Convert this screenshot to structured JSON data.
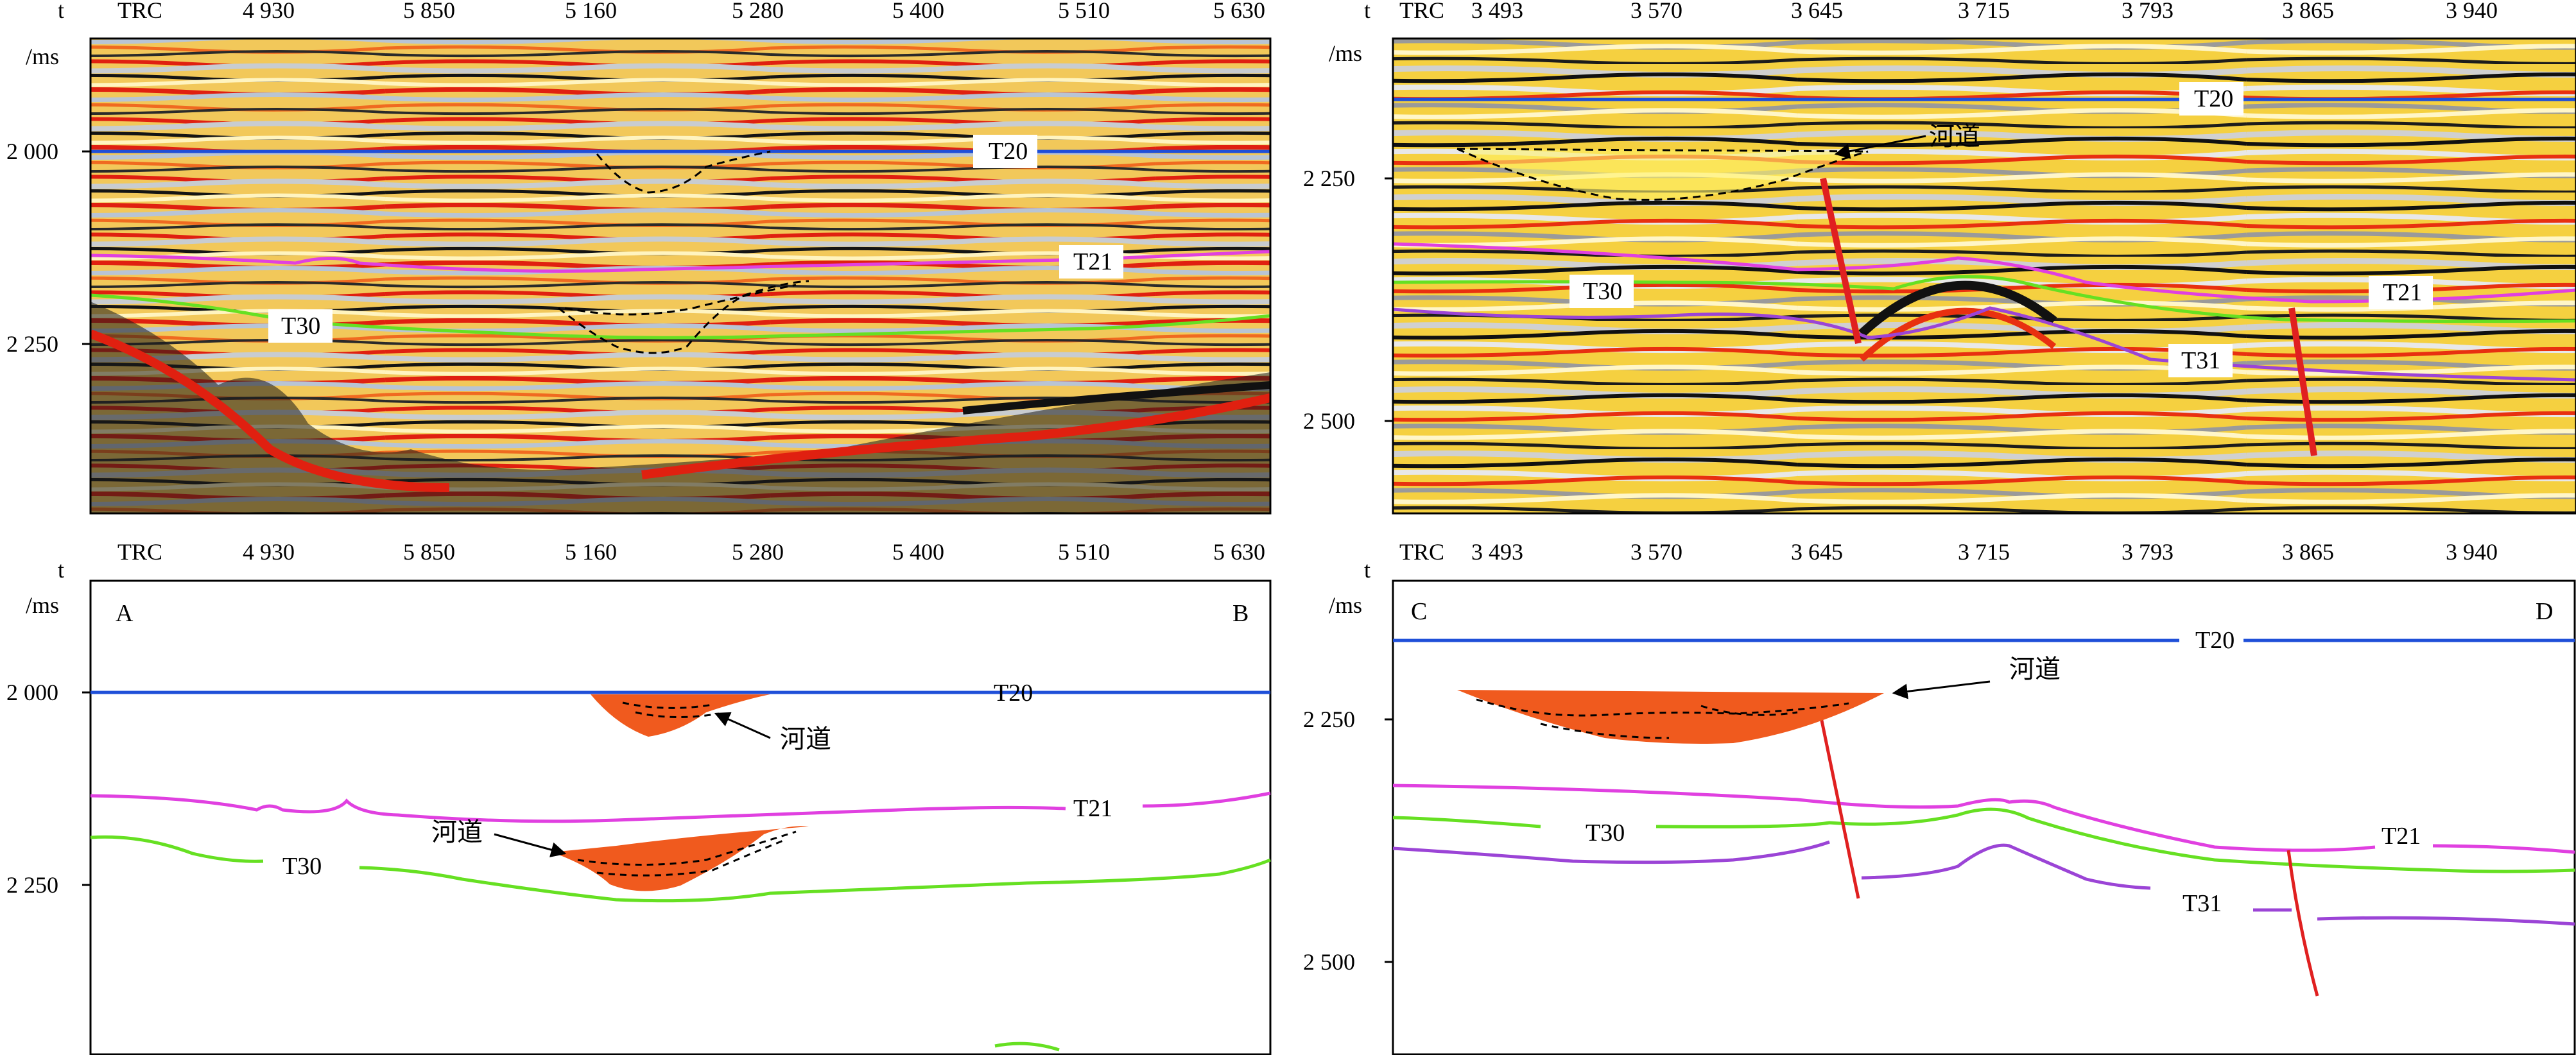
{
  "axis": {
    "trc_label": "TRC",
    "t_label": "t",
    "ms_label": "/ms"
  },
  "panels": {
    "top_left": {
      "trc_ticks": [
        "4 930",
        "5 850",
        "5 160",
        "5 280",
        "5 400",
        "5 510",
        "5 630"
      ],
      "time_ticks": [
        "2 000",
        "2 250"
      ],
      "horizons": [
        "T20",
        "T21",
        "T30"
      ]
    },
    "top_right": {
      "trc_ticks": [
        "3 493",
        "3 570",
        "3 645",
        "3 715",
        "3 793",
        "3 865",
        "3 940"
      ],
      "time_ticks": [
        "2 250",
        "2 500"
      ],
      "horizons": [
        "T20",
        "T30",
        "T21",
        "T31"
      ],
      "channel_label": "河道"
    },
    "bottom_left": {
      "corner_left": "A",
      "corner_right": "B",
      "trc_ticks": [
        "4 930",
        "5 850",
        "5 160",
        "5 280",
        "5 400",
        "5 510",
        "5 630"
      ],
      "time_ticks": [
        "2 000",
        "2 250"
      ],
      "horizons": [
        "T20",
        "T21",
        "T30"
      ],
      "channel_labels": [
        "河道",
        "河道"
      ]
    },
    "bottom_right": {
      "corner_left": "C",
      "corner_right": "D",
      "trc_ticks": [
        "3 493",
        "3 570",
        "3 645",
        "3 715",
        "3 793",
        "3 865",
        "3 940"
      ],
      "time_ticks": [
        "2 250",
        "2 500"
      ],
      "horizons": [
        "T20",
        "T30",
        "T21",
        "T31"
      ],
      "channel_label": "河道"
    }
  },
  "colors": {
    "T20": "#1f4fd8",
    "T21": "#e040e0",
    "T30": "#66e022",
    "T31": "#9b44d6",
    "fault": "#e02020",
    "channel_fill": "#f05a1e",
    "seismic_red": "#e02010",
    "seismic_yellow": "#f5d43a",
    "seismic_black": "#141414",
    "seismic_gray": "#c8ccd0"
  }
}
